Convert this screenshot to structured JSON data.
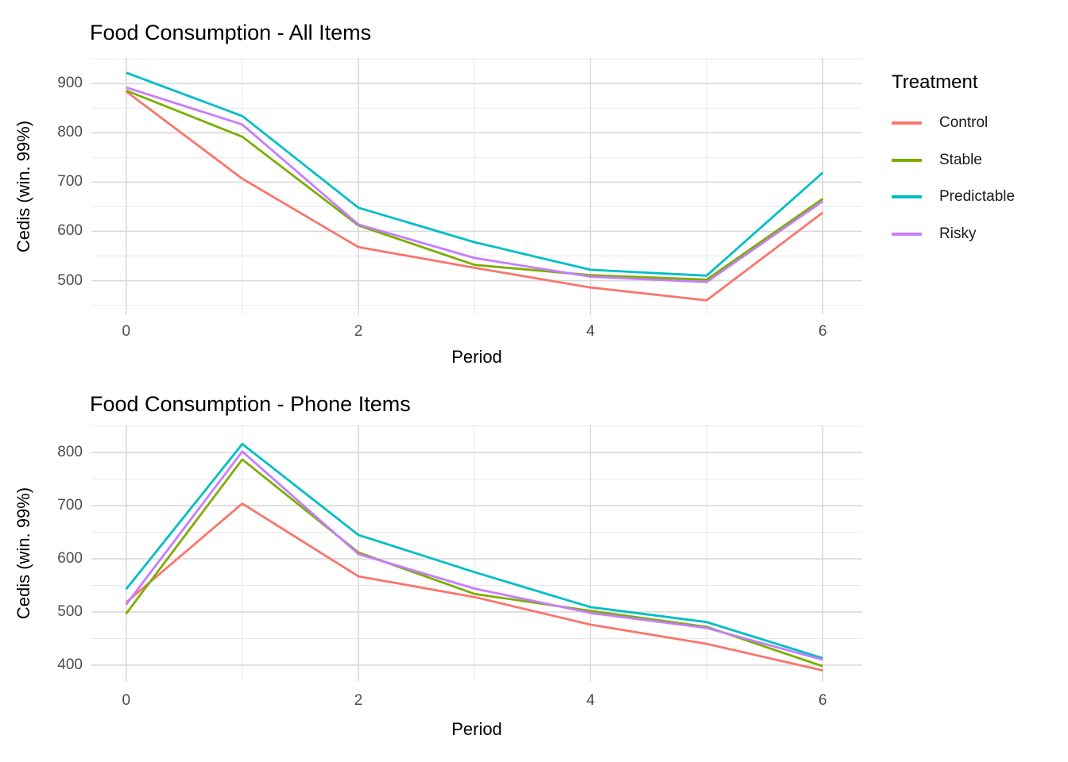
{
  "legend": {
    "title": "Treatment",
    "items": [
      {
        "label": "Control",
        "color": "#F8766D"
      },
      {
        "label": "Stable",
        "color": "#7CAE00"
      },
      {
        "label": "Predictable",
        "color": "#00BFC4"
      },
      {
        "label": "Risky",
        "color": "#C77CFF"
      }
    ]
  },
  "chart_data": [
    {
      "type": "line",
      "title": "Food Consumption - All Items",
      "xlabel": "Period",
      "ylabel": "Cedis (win. 99%)",
      "x": [
        0,
        1,
        2,
        3,
        4,
        5,
        6
      ],
      "x_ticks": [
        0,
        2,
        4,
        6
      ],
      "y_ticks": [
        500,
        600,
        700,
        800,
        900
      ],
      "xlim": [
        -0.3,
        6.34
      ],
      "ylim": [
        430,
        952
      ],
      "grid": "major+minor",
      "legend_position": "right",
      "series": [
        {
          "name": "Control",
          "color": "#F8766D",
          "values": [
            884,
            707,
            568,
            526,
            486,
            460,
            638
          ]
        },
        {
          "name": "Stable",
          "color": "#7CAE00",
          "values": [
            886,
            792,
            612,
            532,
            511,
            502,
            666
          ]
        },
        {
          "name": "Predictable",
          "color": "#00BFC4",
          "values": [
            922,
            834,
            648,
            578,
            522,
            510,
            719
          ]
        },
        {
          "name": "Risky",
          "color": "#C77CFF",
          "values": [
            892,
            817,
            614,
            546,
            508,
            497,
            661
          ]
        }
      ]
    },
    {
      "type": "line",
      "title": "Food Consumption - Phone Items",
      "xlabel": "Period",
      "ylabel": "Cedis (win. 99%)",
      "x": [
        0,
        1,
        2,
        3,
        4,
        5,
        6
      ],
      "x_ticks": [
        0,
        2,
        4,
        6
      ],
      "y_ticks": [
        400,
        500,
        600,
        700,
        800
      ],
      "xlim": [
        -0.3,
        6.34
      ],
      "ylim": [
        370,
        851
      ],
      "grid": "major+minor",
      "legend_position": "none",
      "series": [
        {
          "name": "Control",
          "color": "#F8766D",
          "values": [
            518,
            704,
            567,
            528,
            476,
            440,
            390
          ]
        },
        {
          "name": "Stable",
          "color": "#7CAE00",
          "values": [
            497,
            787,
            612,
            534,
            502,
            472,
            398
          ]
        },
        {
          "name": "Predictable",
          "color": "#00BFC4",
          "values": [
            543,
            816,
            645,
            575,
            509,
            481,
            413
          ]
        },
        {
          "name": "Risky",
          "color": "#C77CFF",
          "values": [
            514,
            802,
            609,
            544,
            498,
            470,
            410
          ]
        }
      ]
    }
  ]
}
